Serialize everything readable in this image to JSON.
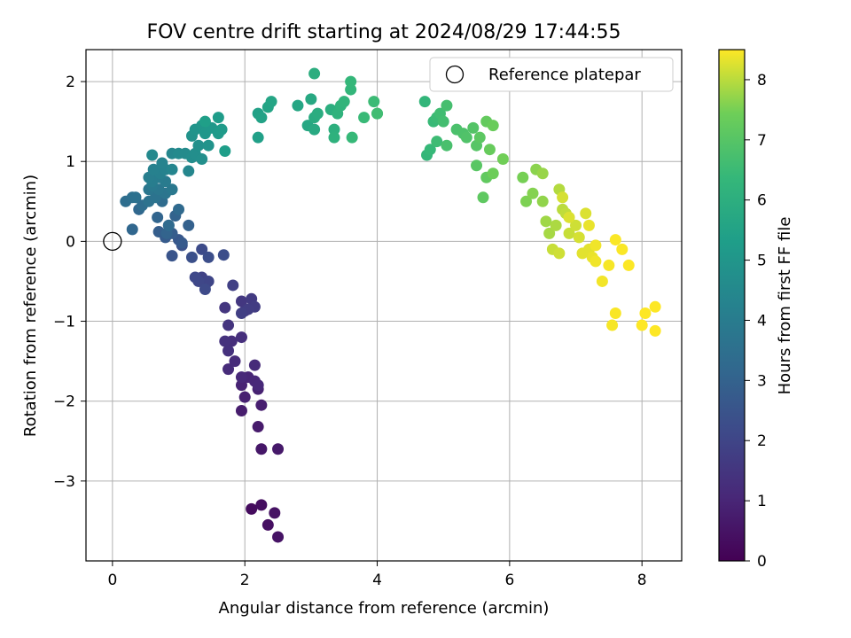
{
  "chart_data": {
    "type": "scatter",
    "title": "FOV centre drift starting at 2024/08/29 17:44:55",
    "xlabel": "Angular distance from reference (arcmin)",
    "ylabel": "Rotation from reference (arcmin)",
    "xlim": [
      -0.4,
      8.6
    ],
    "ylim": [
      -4.0,
      2.4
    ],
    "xticks": [
      0,
      2,
      4,
      6,
      8
    ],
    "yticks": [
      -3,
      -2,
      -1,
      0,
      1,
      2
    ],
    "grid": true,
    "legend": {
      "placement": "top-right",
      "entries": [
        "Reference platepar"
      ]
    },
    "reference_point": {
      "x": 0,
      "y": 0,
      "label": "Reference platepar"
    },
    "colorbar": {
      "label": "Hours from first FF file",
      "range": [
        0,
        8.5
      ],
      "ticks": [
        0,
        1,
        2,
        3,
        4,
        5,
        6,
        7,
        8
      ],
      "colormap": "viridis"
    },
    "points": [
      [
        2.1,
        -3.35,
        0.3
      ],
      [
        2.25,
        -3.3,
        0.35
      ],
      [
        2.35,
        -3.55,
        0.4
      ],
      [
        2.45,
        -3.4,
        0.45
      ],
      [
        2.5,
        -3.7,
        0.5
      ],
      [
        2.25,
        -2.6,
        0.6
      ],
      [
        2.5,
        -2.6,
        0.65
      ],
      [
        2.2,
        -2.32,
        0.7
      ],
      [
        1.95,
        -2.12,
        0.75
      ],
      [
        2.25,
        -2.05,
        0.8
      ],
      [
        2.0,
        -1.95,
        0.85
      ],
      [
        2.2,
        -1.85,
        0.9
      ],
      [
        1.95,
        -1.8,
        0.95
      ],
      [
        2.05,
        -1.7,
        1.0
      ],
      [
        2.15,
        -1.75,
        1.05
      ],
      [
        1.95,
        -1.7,
        1.1
      ],
      [
        2.2,
        -1.8,
        1.1
      ],
      [
        2.15,
        -1.55,
        1.15
      ],
      [
        1.75,
        -1.6,
        1.2
      ],
      [
        1.85,
        -1.5,
        1.2
      ],
      [
        1.8,
        -1.25,
        1.25
      ],
      [
        1.95,
        -1.2,
        1.3
      ],
      [
        1.75,
        -1.37,
        1.35
      ],
      [
        1.7,
        -1.25,
        1.4
      ],
      [
        1.75,
        -1.05,
        1.45
      ],
      [
        1.7,
        -0.83,
        1.5
      ],
      [
        1.95,
        -0.75,
        1.55
      ],
      [
        2.0,
        -0.87,
        1.6
      ],
      [
        2.1,
        -0.72,
        1.65
      ],
      [
        2.15,
        -0.82,
        1.7
      ],
      [
        2.05,
        -0.85,
        1.75
      ],
      [
        1.95,
        -0.9,
        1.8
      ],
      [
        1.82,
        -0.55,
        1.85
      ],
      [
        1.35,
        -0.45,
        1.9
      ],
      [
        1.4,
        -0.55,
        1.95
      ],
      [
        1.45,
        -0.5,
        2.0
      ],
      [
        1.3,
        -0.5,
        2.05
      ],
      [
        1.25,
        -0.45,
        2.1
      ],
      [
        1.4,
        -0.6,
        2.15
      ],
      [
        1.35,
        -0.1,
        2.2
      ],
      [
        1.68,
        -0.17,
        2.25
      ],
      [
        1.45,
        -0.2,
        2.3
      ],
      [
        1.2,
        -0.2,
        2.35
      ],
      [
        1.05,
        -0.05,
        2.4
      ],
      [
        0.9,
        -0.18,
        2.5
      ],
      [
        1.0,
        0.02,
        2.6
      ],
      [
        1.05,
        -0.02,
        2.7
      ],
      [
        0.8,
        0.05,
        2.75
      ],
      [
        0.9,
        0.1,
        2.8
      ],
      [
        0.7,
        0.12,
        2.85
      ],
      [
        0.85,
        0.2,
        2.9
      ],
      [
        1.15,
        0.2,
        2.95
      ],
      [
        0.95,
        0.32,
        3.0
      ],
      [
        0.82,
        0.1,
        3.05
      ],
      [
        0.68,
        0.3,
        3.1
      ],
      [
        0.3,
        0.15,
        3.15
      ],
      [
        0.4,
        0.4,
        3.2
      ],
      [
        1.0,
        0.4,
        3.25
      ],
      [
        0.85,
        0.2,
        3.3
      ],
      [
        0.75,
        0.5,
        3.35
      ],
      [
        0.45,
        0.45,
        3.4
      ],
      [
        0.2,
        0.5,
        3.45
      ],
      [
        0.3,
        0.55,
        3.5
      ],
      [
        0.35,
        0.55,
        3.55
      ],
      [
        0.55,
        0.5,
        3.6
      ],
      [
        0.65,
        0.55,
        3.65
      ],
      [
        0.8,
        0.6,
        3.7
      ],
      [
        0.55,
        0.65,
        3.75
      ],
      [
        0.7,
        0.65,
        3.8
      ],
      [
        0.9,
        0.65,
        3.85
      ],
      [
        0.6,
        0.7,
        3.9
      ],
      [
        0.8,
        0.75,
        3.95
      ],
      [
        0.7,
        0.8,
        4.0
      ],
      [
        0.6,
        0.75,
        4.05
      ],
      [
        0.55,
        0.8,
        4.1
      ],
      [
        0.72,
        0.85,
        4.15
      ],
      [
        0.62,
        0.9,
        4.2
      ],
      [
        0.8,
        0.9,
        4.25
      ],
      [
        0.75,
        0.98,
        4.3
      ],
      [
        0.9,
        0.9,
        4.35
      ],
      [
        1.15,
        0.88,
        4.4
      ],
      [
        0.9,
        1.1,
        4.45
      ],
      [
        0.6,
        1.08,
        4.5
      ],
      [
        1.0,
        1.1,
        4.55
      ],
      [
        1.1,
        1.1,
        4.6
      ],
      [
        1.2,
        1.05,
        4.65
      ],
      [
        1.25,
        1.1,
        4.7
      ],
      [
        1.35,
        1.03,
        4.75
      ],
      [
        1.3,
        1.2,
        4.8
      ],
      [
        1.2,
        1.32,
        4.85
      ],
      [
        1.45,
        1.2,
        4.9
      ],
      [
        1.25,
        1.4,
        4.95
      ],
      [
        1.35,
        1.45,
        5.0
      ],
      [
        1.4,
        1.35,
        5.05
      ],
      [
        1.5,
        1.42,
        5.1
      ],
      [
        1.6,
        1.35,
        5.15
      ],
      [
        1.65,
        1.4,
        5.2
      ],
      [
        1.6,
        1.55,
        5.25
      ],
      [
        1.7,
        1.13,
        5.3
      ],
      [
        1.4,
        1.5,
        5.35
      ],
      [
        2.2,
        1.3,
        5.4
      ],
      [
        2.2,
        1.6,
        5.45
      ],
      [
        2.25,
        1.55,
        5.5
      ],
      [
        2.35,
        1.68,
        5.55
      ],
      [
        2.4,
        1.75,
        5.6
      ],
      [
        2.8,
        1.7,
        5.65
      ],
      [
        2.95,
        1.45,
        5.7
      ],
      [
        3.0,
        1.78,
        5.75
      ],
      [
        3.05,
        1.4,
        5.8
      ],
      [
        3.05,
        1.55,
        5.85
      ],
      [
        3.1,
        1.6,
        5.9
      ],
      [
        3.05,
        2.1,
        5.95
      ],
      [
        3.3,
        1.65,
        6.0
      ],
      [
        3.35,
        1.4,
        6.05
      ],
      [
        3.35,
        1.3,
        6.1
      ],
      [
        3.4,
        1.6,
        6.15
      ],
      [
        3.45,
        1.7,
        6.2
      ],
      [
        3.5,
        1.75,
        6.25
      ],
      [
        3.6,
        1.9,
        6.3
      ],
      [
        3.6,
        2.0,
        6.35
      ],
      [
        3.62,
        1.3,
        6.4
      ],
      [
        3.8,
        1.55,
        6.45
      ],
      [
        3.95,
        1.75,
        6.5
      ],
      [
        4.0,
        1.6,
        6.55
      ],
      [
        4.0,
        1.6,
        6.6
      ],
      [
        4.72,
        1.75,
        6.3
      ],
      [
        4.75,
        1.08,
        6.35
      ],
      [
        4.8,
        1.15,
        6.4
      ],
      [
        4.85,
        1.5,
        6.45
      ],
      [
        4.9,
        1.55,
        6.5
      ],
      [
        4.9,
        1.25,
        6.55
      ],
      [
        4.95,
        1.6,
        6.6
      ],
      [
        5.0,
        1.5,
        6.65
      ],
      [
        5.05,
        1.7,
        6.7
      ],
      [
        5.05,
        1.2,
        6.75
      ],
      [
        5.2,
        1.4,
        6.8
      ],
      [
        5.3,
        1.35,
        6.85
      ],
      [
        5.35,
        1.3,
        6.9
      ],
      [
        5.45,
        1.42,
        6.95
      ],
      [
        5.5,
        1.2,
        7.0
      ],
      [
        5.5,
        0.95,
        7.05
      ],
      [
        5.55,
        1.3,
        7.1
      ],
      [
        5.6,
        0.55,
        7.15
      ],
      [
        5.65,
        0.8,
        7.2
      ],
      [
        5.65,
        1.5,
        7.25
      ],
      [
        5.7,
        1.15,
        7.3
      ],
      [
        5.75,
        1.45,
        7.35
      ],
      [
        5.75,
        0.85,
        7.4
      ],
      [
        5.9,
        1.03,
        7.45
      ],
      [
        6.2,
        0.8,
        7.5
      ],
      [
        6.25,
        0.5,
        7.55
      ],
      [
        6.35,
        0.6,
        7.6
      ],
      [
        6.4,
        0.9,
        7.65
      ],
      [
        6.5,
        0.5,
        7.7
      ],
      [
        6.5,
        0.85,
        7.75
      ],
      [
        6.55,
        0.25,
        7.8
      ],
      [
        6.6,
        0.1,
        7.85
      ],
      [
        6.7,
        0.2,
        7.9
      ],
      [
        6.75,
        0.65,
        7.95
      ],
      [
        6.8,
        0.4,
        8.0
      ],
      [
        6.85,
        0.35,
        8.05
      ],
      [
        6.9,
        0.1,
        8.1
      ],
      [
        7.0,
        0.2,
        8.15
      ],
      [
        7.05,
        0.05,
        8.2
      ],
      [
        7.15,
        0.35,
        8.25
      ],
      [
        7.2,
        -0.1,
        8.3
      ],
      [
        7.25,
        -0.2,
        8.35
      ],
      [
        7.3,
        -0.05,
        8.4
      ],
      [
        6.65,
        -0.1,
        8.1
      ],
      [
        6.75,
        -0.15,
        8.15
      ],
      [
        6.8,
        0.55,
        8.2
      ],
      [
        6.9,
        0.3,
        8.25
      ],
      [
        7.1,
        -0.15,
        8.3
      ],
      [
        7.2,
        0.2,
        8.35
      ],
      [
        7.3,
        -0.25,
        8.4
      ],
      [
        7.4,
        -0.5,
        8.42
      ],
      [
        7.5,
        -0.3,
        8.45
      ],
      [
        7.55,
        -1.05,
        8.45
      ],
      [
        7.6,
        -0.9,
        8.47
      ],
      [
        7.7,
        -0.1,
        8.48
      ],
      [
        7.6,
        0.02,
        8.48
      ],
      [
        7.8,
        -0.3,
        8.49
      ],
      [
        8.0,
        -1.05,
        8.5
      ],
      [
        8.05,
        -0.9,
        8.5
      ],
      [
        8.2,
        -0.82,
        8.5
      ],
      [
        8.2,
        -1.12,
        8.5
      ]
    ]
  }
}
